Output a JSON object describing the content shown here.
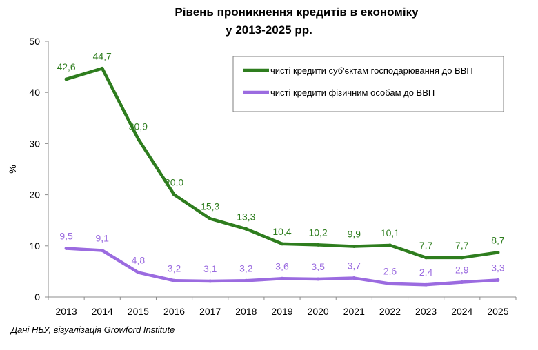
{
  "title_line1": "Рівень проникнення кредитів в економіку",
  "title_line2": "у 2013-2025 рр.",
  "source": "Дані НБУ, візуалізація Growford Institute",
  "chart_data": {
    "type": "line",
    "title": "Рівень проникнення кредитів в економіку у 2013-2025 рр.",
    "xlabel": "",
    "ylabel": "%",
    "categories": [
      "2013",
      "2014",
      "2015",
      "2016",
      "2017",
      "2018",
      "2019",
      "2020",
      "2021",
      "2022",
      "2023",
      "2024",
      "2025"
    ],
    "ylim": [
      0,
      50
    ],
    "yticks": [
      0,
      10,
      20,
      30,
      40,
      50
    ],
    "grid": false,
    "legend_position": "top-right",
    "series": [
      {
        "name": "чисті кредити суб'єктам господарювання до ВВП",
        "color": "#2e7d1e",
        "values": [
          42.6,
          44.7,
          30.9,
          20.0,
          15.3,
          13.3,
          10.4,
          10.2,
          9.9,
          10.1,
          7.7,
          7.7,
          8.7
        ],
        "labels": [
          "42,6",
          "44,7",
          "30,9",
          "20,0",
          "15,3",
          "13,3",
          "10,4",
          "10,2",
          "9,9",
          "10,1",
          "7,7",
          "7,7",
          "8,7"
        ]
      },
      {
        "name": "чисті кредити фізичним особам до ВВП",
        "color": "#9b6be0",
        "values": [
          9.5,
          9.1,
          4.8,
          3.2,
          3.1,
          3.2,
          3.6,
          3.5,
          3.7,
          2.6,
          2.4,
          2.9,
          3.3
        ],
        "labels": [
          "9,5",
          "9,1",
          "4,8",
          "3,2",
          "3,1",
          "3,2",
          "3,6",
          "3,5",
          "3,7",
          "2,6",
          "2,4",
          "2,9",
          "3,3"
        ]
      }
    ]
  }
}
